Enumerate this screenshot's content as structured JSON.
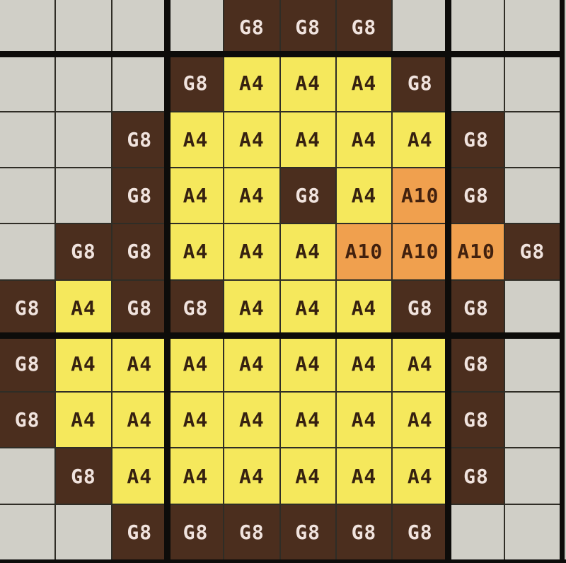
{
  "chart": {
    "type": "stitch-pattern-color-grid",
    "rows": 10,
    "columns": 10,
    "legend": {
      "G8": {
        "name": "dark-brown",
        "fill": "#4B2E1E",
        "text": "#F0E3DE"
      },
      "A4": {
        "name": "yellow",
        "fill": "#F5E85C",
        "text": "#362110"
      },
      "A10": {
        "name": "orange",
        "fill": "#F0A04E",
        "text": "#42210E"
      },
      "empty": {
        "name": "background",
        "fill": "#D0CFC7",
        "text": "#2B2B2B"
      }
    },
    "cells": [
      [
        "",
        "",
        "",
        "",
        "G8",
        "G8",
        "G8",
        "",
        "",
        ""
      ],
      [
        "",
        "",
        "",
        "G8",
        "A4",
        "A4",
        "A4",
        "G8",
        "",
        ""
      ],
      [
        "",
        "",
        "G8",
        "A4",
        "A4",
        "A4",
        "A4",
        "A4",
        "G8",
        ""
      ],
      [
        "",
        "",
        "G8",
        "A4",
        "A4",
        "G8",
        "A4",
        "A10",
        "G8",
        ""
      ],
      [
        "",
        "G8",
        "G8",
        "A4",
        "A4",
        "A4",
        "A10",
        "A10",
        "A10",
        "G8"
      ],
      [
        "G8",
        "A4",
        "G8",
        "G8",
        "A4",
        "A4",
        "A4",
        "G8",
        "G8",
        ""
      ],
      [
        "G8",
        "A4",
        "A4",
        "A4",
        "A4",
        "A4",
        "A4",
        "A4",
        "G8",
        ""
      ],
      [
        "G8",
        "A4",
        "A4",
        "A4",
        "A4",
        "A4",
        "A4",
        "A4",
        "G8",
        ""
      ],
      [
        "",
        "G8",
        "A4",
        "A4",
        "A4",
        "A4",
        "A4",
        "A4",
        "G8",
        ""
      ],
      [
        "",
        "",
        "G8",
        "G8",
        "G8",
        "G8",
        "G8",
        "G8",
        "",
        ""
      ]
    ],
    "major_gridline_after_columns": [
      3,
      8
    ],
    "major_gridline_after_rows": [
      1,
      6
    ]
  },
  "colors": {
    "thin_gridline": "#2F2D26",
    "thick_gridline": "#0D0C0A",
    "right_edge_sliver": "#C9C8C0"
  }
}
